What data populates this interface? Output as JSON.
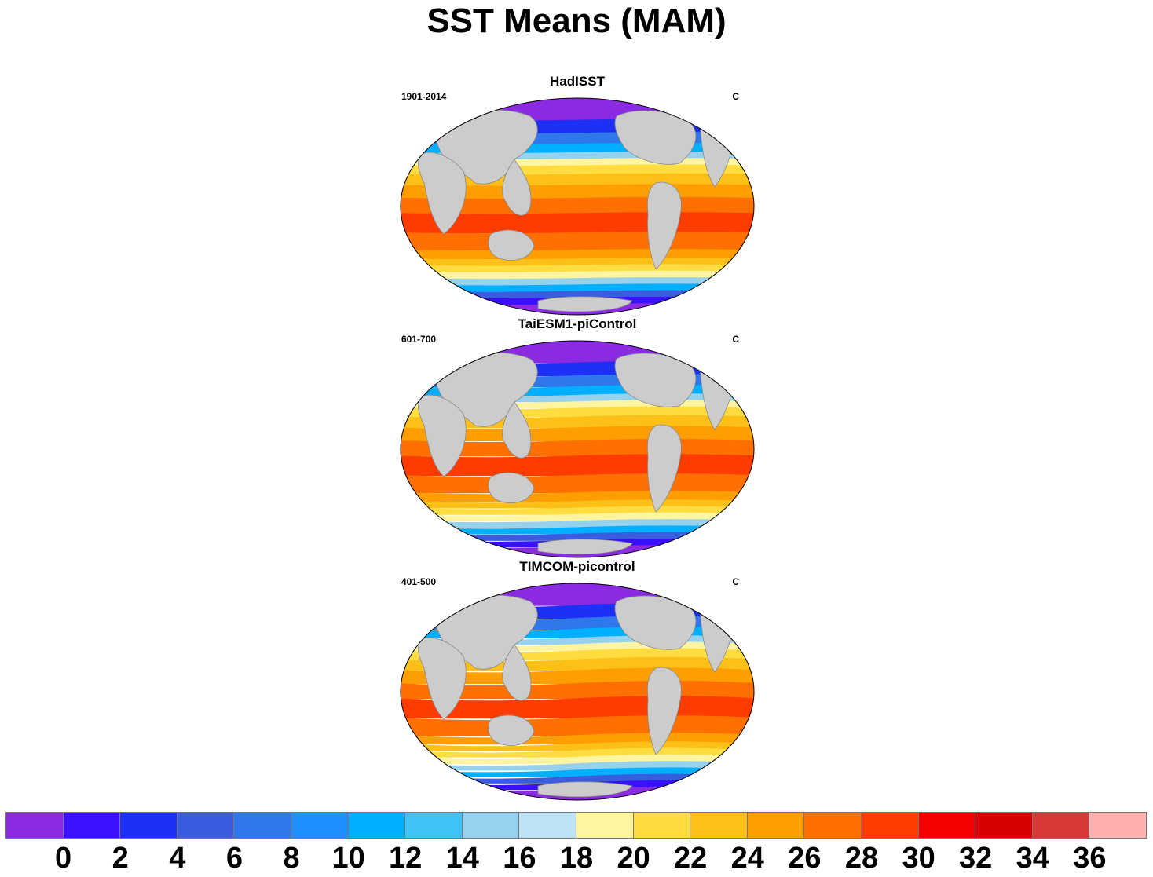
{
  "title": "SST Means (MAM)",
  "panels": [
    {
      "title": "HadISST",
      "period": "1901-2014",
      "units": "C"
    },
    {
      "title": "TaiESM1-piControl",
      "period": "601-700",
      "units": "C"
    },
    {
      "title": "TIMCOM-picontrol",
      "period": "401-500",
      "units": "C"
    }
  ],
  "colorbar": {
    "colors": [
      "#8a2be2",
      "#3a10ff",
      "#1e30f5",
      "#3c5ce0",
      "#2f78ec",
      "#1e90ff",
      "#00b0ff",
      "#40c4f8",
      "#96d2ee",
      "#bfe3f6",
      "#fff5a0",
      "#ffdd40",
      "#fcc018",
      "#ff9e00",
      "#ff7000",
      "#ff3c00",
      "#f50000",
      "#d80000",
      "#d83838",
      "#ffb0b0"
    ],
    "tick_labels": [
      "0",
      "2",
      "4",
      "6",
      "8",
      "10",
      "12",
      "14",
      "16",
      "18",
      "20",
      "22",
      "24",
      "26",
      "28",
      "30",
      "32",
      "34",
      "36"
    ]
  }
}
